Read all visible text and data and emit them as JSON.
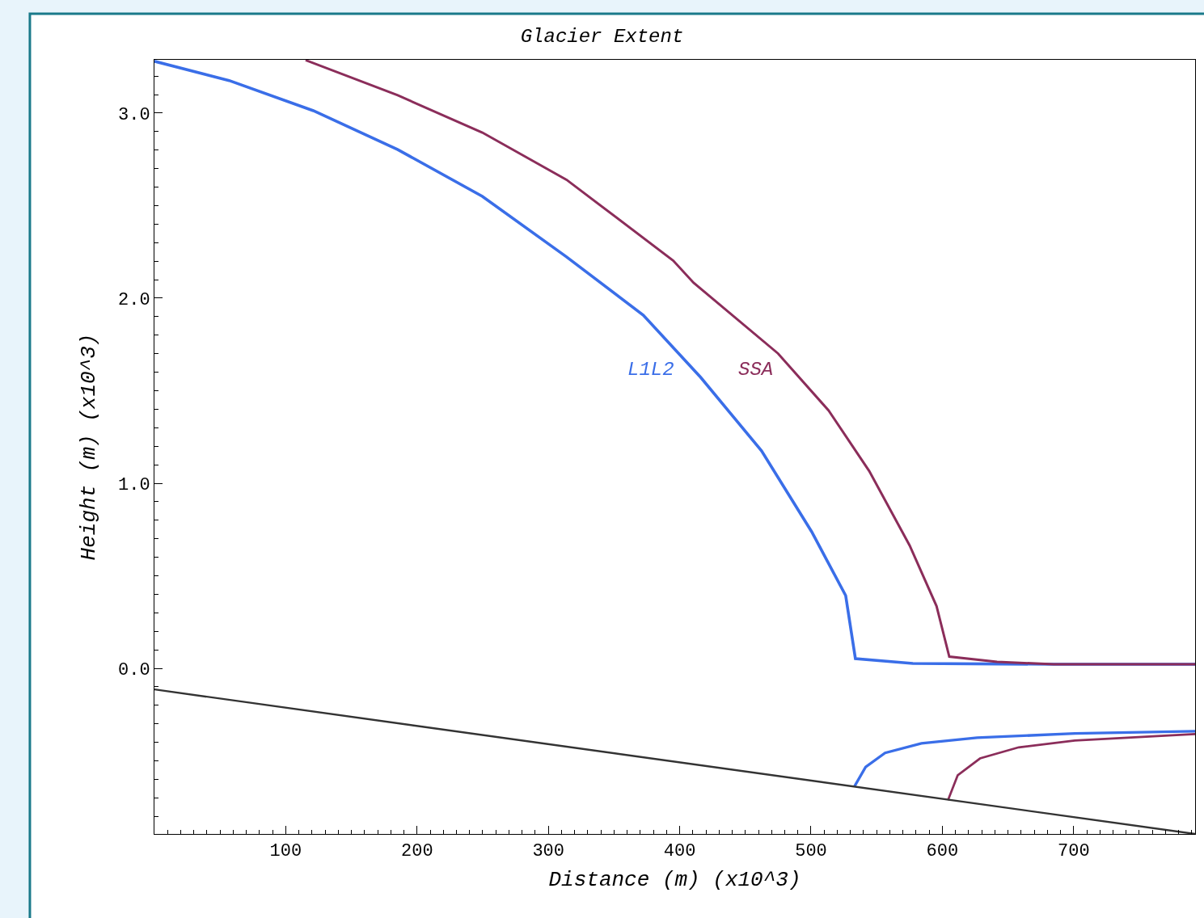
{
  "chart_data": {
    "type": "line",
    "title": "Glacier Extent",
    "xlabel": "Distance (m) (x10^3)",
    "ylabel": "Height (m) (x10^3)",
    "xlim": [
      0,
      792.5
    ],
    "ylim": [
      -0.895,
      3.288
    ],
    "xticks": [
      100,
      200,
      300,
      400,
      500,
      600,
      700
    ],
    "yticks": [
      {
        "value": 0,
        "label": "0.0"
      },
      {
        "value": 1,
        "label": "1.0"
      },
      {
        "value": 2,
        "label": "2.0"
      },
      {
        "value": 3,
        "label": "3.0"
      }
    ],
    "legend": false,
    "marker": "none",
    "line_style": "solid",
    "series": [
      {
        "name": "L1L2",
        "color": "#3a6ee8",
        "x": [
          0,
          56.9,
          121,
          185.3,
          249.7,
          313.8,
          372.3,
          416,
          462.3,
          500.5,
          526.4,
          533.8,
          577.6,
          684.8,
          792.5
        ],
        "values": [
          3.28,
          3.176,
          3.013,
          2.803,
          2.55,
          2.223,
          1.908,
          1.572,
          1.175,
          0.738,
          0.393,
          0.052,
          0.026,
          0.022,
          0.022
        ]
      },
      {
        "color": "#3a6ee8",
        "x": [
          533.1,
          541.6,
          556.4,
          584.1,
          626.5,
          700.9,
          792.5
        ],
        "values": [
          -0.638,
          -0.533,
          -0.457,
          -0.405,
          -0.375,
          -0.352,
          -0.34
        ]
      },
      {
        "name": "SSA",
        "color": "#8b2d5a",
        "x": [
          115.1,
          185.3,
          249.7,
          313.8,
          395.1,
          410.6,
          474.9,
          513.4,
          544.3,
          575.1,
          595.6,
          605.3,
          641.7,
          684.8,
          792.5
        ],
        "values": [
          3.286,
          3.096,
          2.895,
          2.64,
          2.203,
          2.083,
          1.701,
          1.393,
          1.066,
          0.664,
          0.336,
          0.063,
          0.035,
          0.022,
          0.022
        ]
      },
      {
        "color": "#8b2d5a",
        "x": [
          604.3,
          611.7,
          628.7,
          658.2,
          700.9,
          792.5
        ],
        "values": [
          -0.713,
          -0.578,
          -0.487,
          -0.427,
          -0.39,
          -0.355
        ]
      },
      {
        "color": "#333333",
        "x": [
          0,
          792.5
        ],
        "values": [
          -0.114,
          -0.895
        ]
      }
    ]
  }
}
